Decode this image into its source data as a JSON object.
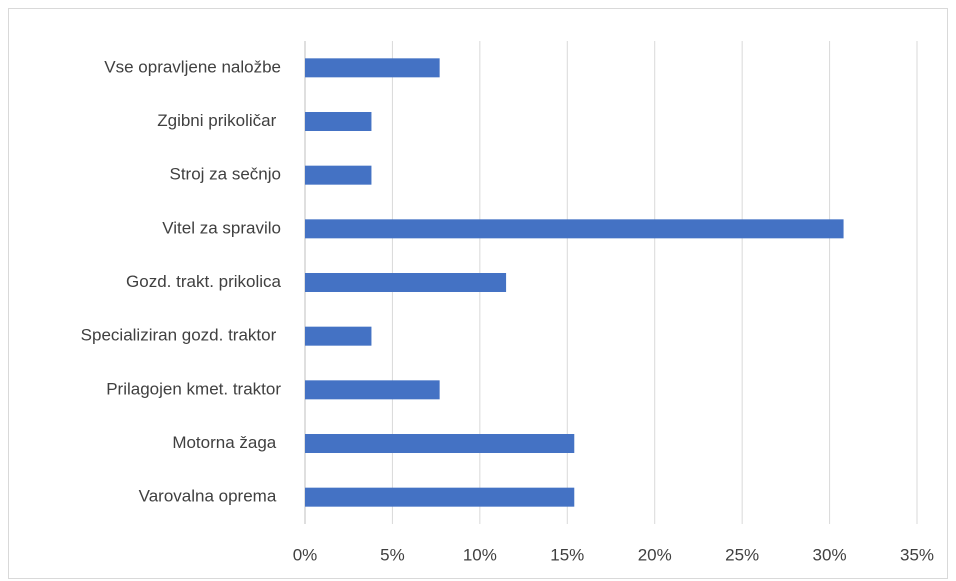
{
  "chart_data": {
    "type": "hbar",
    "categories": [
      "Vse opravljene naložbe",
      "Zgibni prikoličar ",
      "Stroj za sečnjo",
      "Vitel za spravilo",
      "Gozd. trakt. prikolica",
      "Specializiran gozd. traktor ",
      "Prilagojen kmet. traktor",
      "Motorna žaga ",
      "Varovalna oprema "
    ],
    "values": [
      7.7,
      3.8,
      3.8,
      30.8,
      11.5,
      3.8,
      7.7,
      15.4,
      15.4
    ],
    "color": "#4472c4",
    "xlim": [
      0,
      35
    ],
    "xticks": [
      {
        "value": 0,
        "label": "0%"
      },
      {
        "value": 5,
        "label": "5%"
      },
      {
        "value": 10,
        "label": "10%"
      },
      {
        "value": 15,
        "label": "15%"
      },
      {
        "value": 20,
        "label": "20%"
      },
      {
        "value": 25,
        "label": "25%"
      },
      {
        "value": 30,
        "label": "30%"
      },
      {
        "value": 35,
        "label": "35%"
      }
    ],
    "grid": true
  }
}
